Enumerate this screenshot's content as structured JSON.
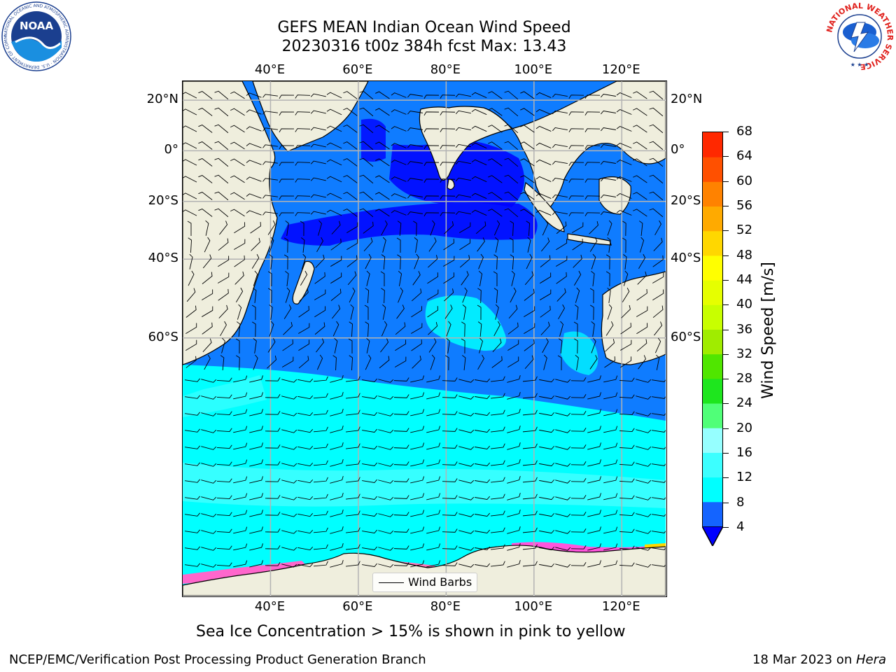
{
  "header": {
    "title_line1": "GEFS MEAN Indian Ocean Wind Speed",
    "title_line2": "20230316 t00z 384h fcst   Max: 13.43"
  },
  "logos": {
    "noaa": {
      "text": "NOAA",
      "ring_text": "NATIONAL OCEANIC AND ATMOSPHERIC ADMINISTRATION · U.S. DEPARTMENT OF COMMERCE"
    },
    "nws": {
      "ring_text": "NATIONAL WEATHER SERVICE"
    }
  },
  "map": {
    "lon_range": [
      20,
      130
    ],
    "lat_range": [
      -85,
      27
    ],
    "lon_ticks": [
      {
        "value": 40,
        "label": "40°E"
      },
      {
        "value": 60,
        "label": "60°E"
      },
      {
        "value": 80,
        "label": "80°E"
      },
      {
        "value": 100,
        "label": "100°E"
      },
      {
        "value": 120,
        "label": "120°E"
      }
    ],
    "lat_ticks": [
      {
        "value": 20,
        "label": "20°N"
      },
      {
        "value": 0,
        "label": "0°"
      },
      {
        "value": -20,
        "label": "20°S"
      },
      {
        "value": -40,
        "label": "40°S"
      },
      {
        "value": -60,
        "label": "60°S"
      }
    ],
    "legend": {
      "label": "Wind Barbs"
    },
    "colors": {
      "land": "#efeedd",
      "ocean_base": "#0f7cff",
      "grid": "#b3b3b3"
    }
  },
  "colorbar": {
    "title": "Wind Speed [m/s]",
    "levels": [
      4,
      8,
      12,
      16,
      20,
      24,
      28,
      32,
      36,
      40,
      44,
      48,
      52,
      56,
      60,
      64,
      68
    ],
    "colors": [
      "#1464ff",
      "#00ffff",
      "#3cffff",
      "#96ffff",
      "#50ff78",
      "#1ee61e",
      "#50e600",
      "#a0ec00",
      "#c8ff00",
      "#e6ff00",
      "#ffff00",
      "#ffd700",
      "#ffaa00",
      "#ff8200",
      "#ff5000",
      "#ff2800"
    ],
    "under_color": "#0000ff"
  },
  "caption": "Sea Ice Concentration > 15% is shown in pink to yellow",
  "footer": {
    "left": "NCEP/EMC/Verification Post Processing Product Generation Branch",
    "right_prefix": "18 Mar 2023 on ",
    "right_host": "Hera"
  }
}
